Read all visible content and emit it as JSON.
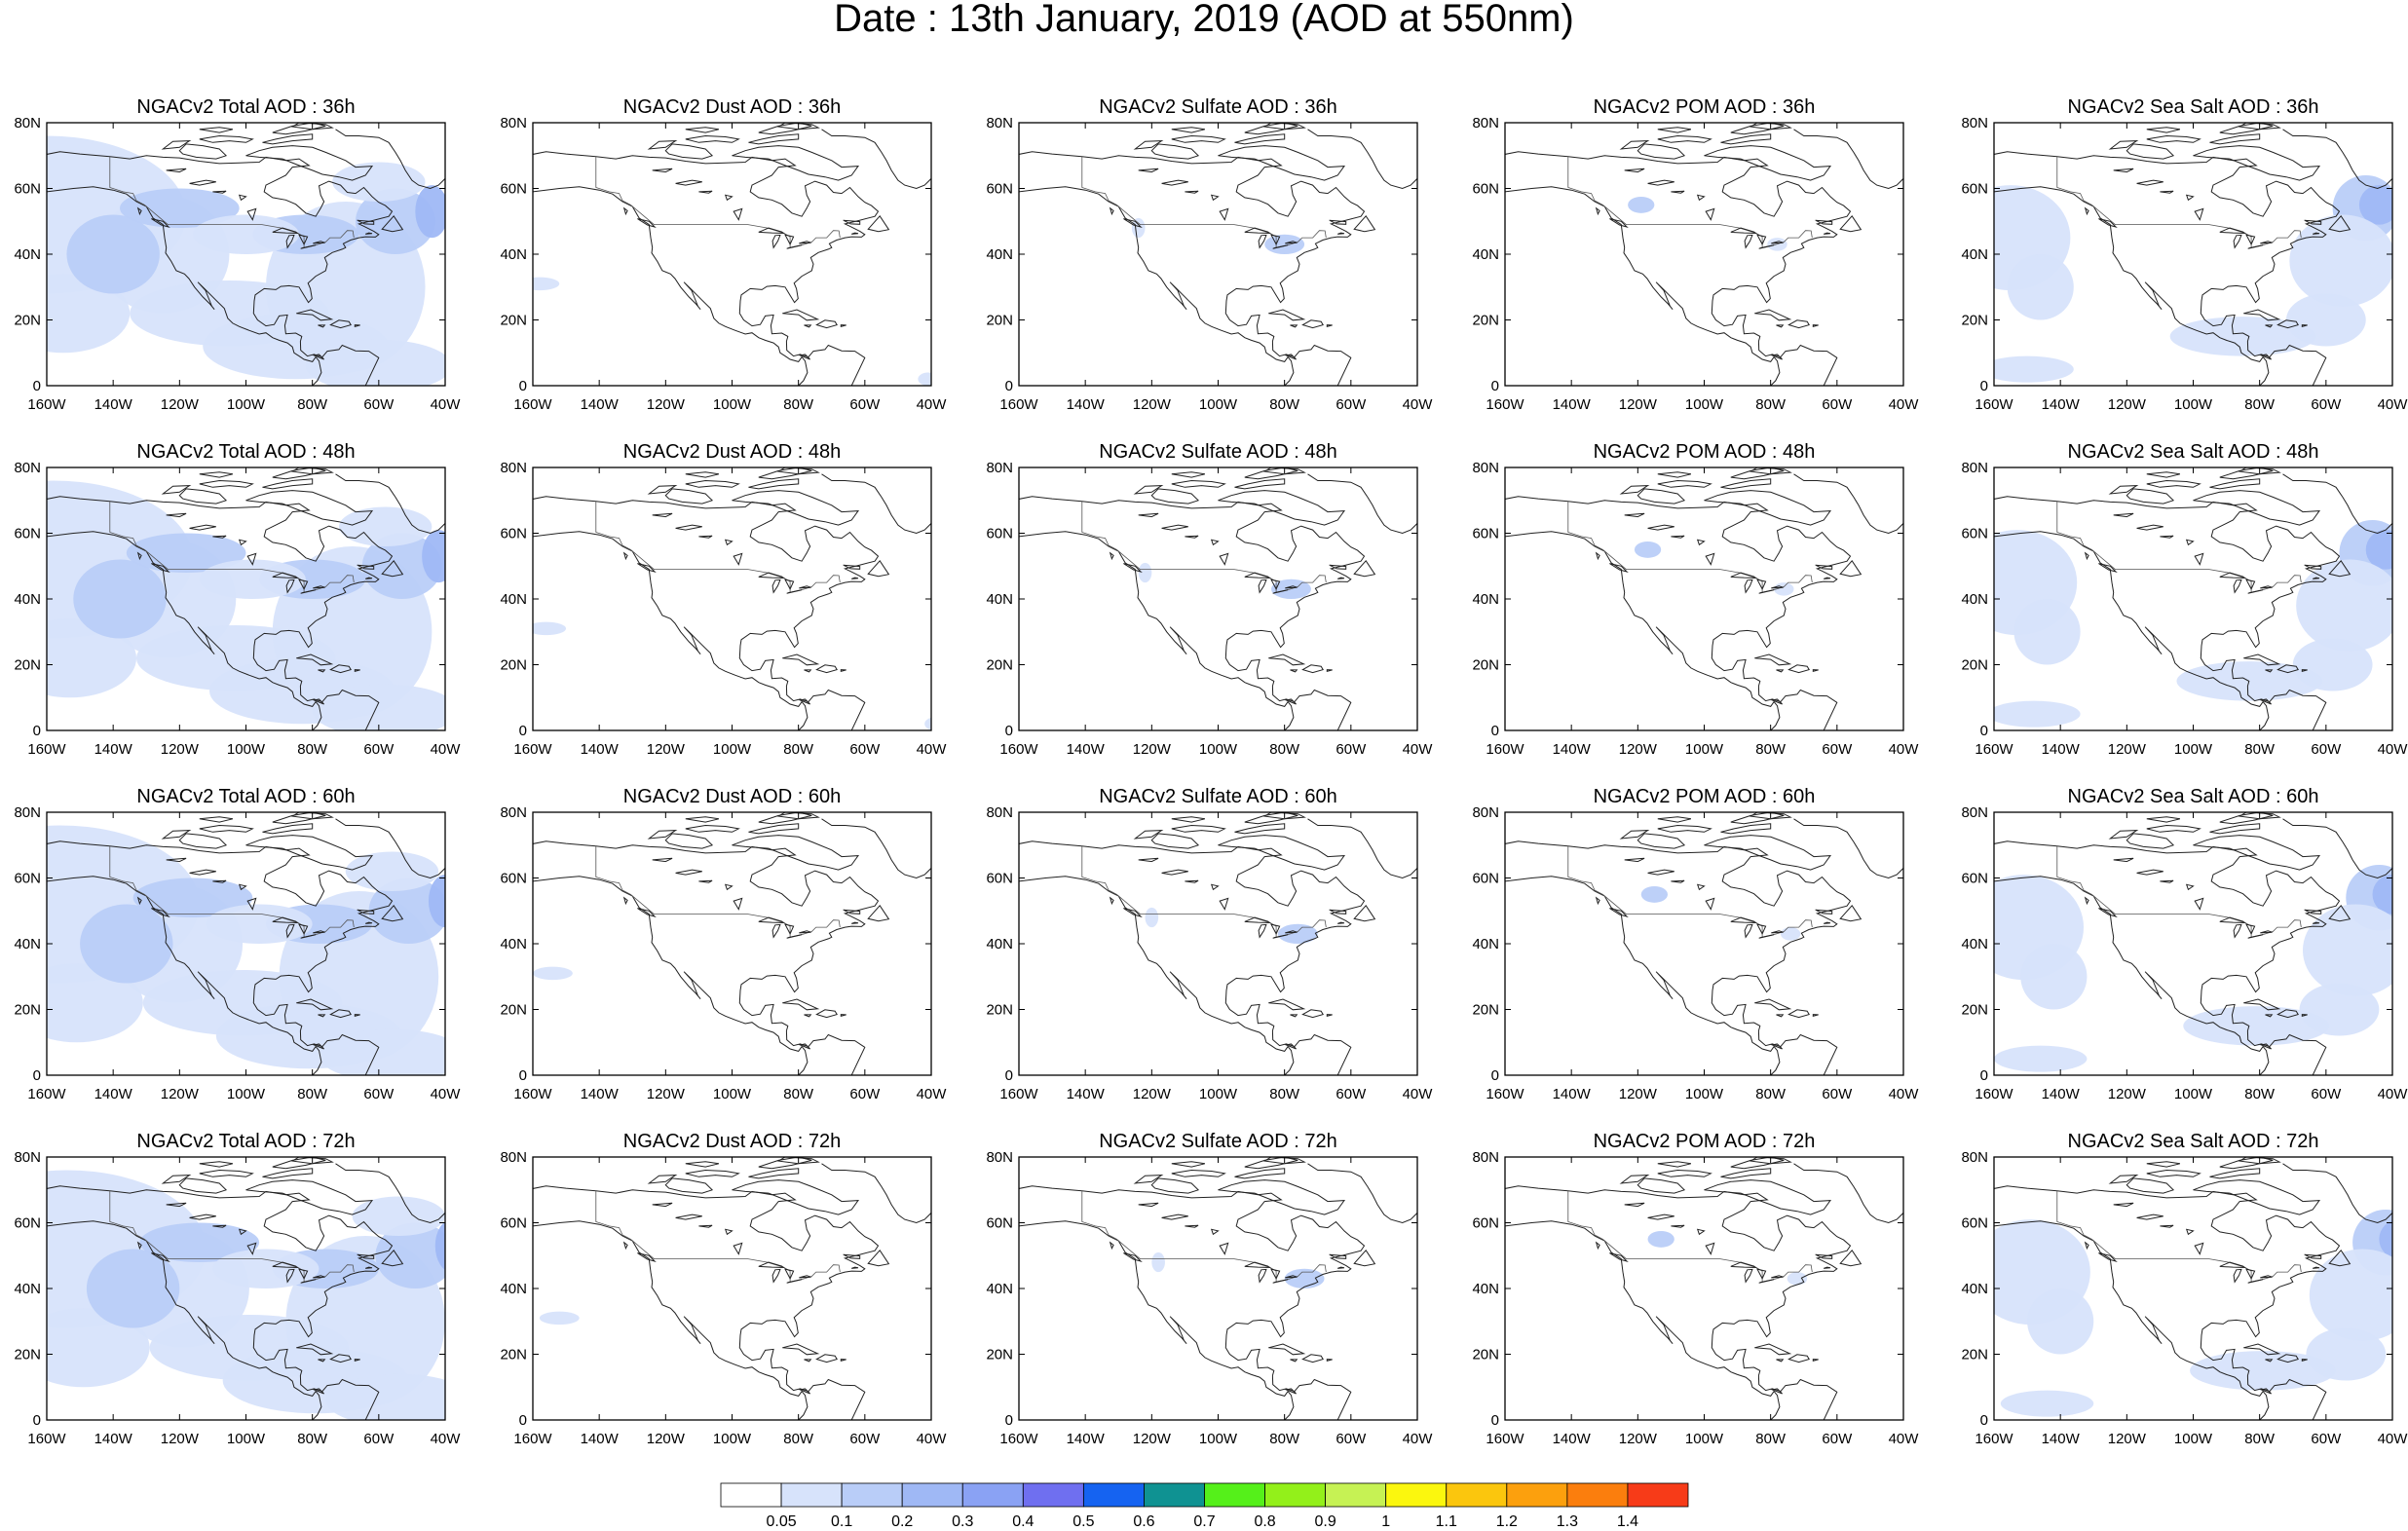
{
  "title": "Date : 13th January, 2019 (AOD at 550nm)",
  "lat_ticks": [
    "80N",
    "60N",
    "40N",
    "20N",
    "0"
  ],
  "lon_ticks": [
    "160W",
    "140W",
    "120W",
    "100W",
    "80W",
    "60W",
    "40W"
  ],
  "panel_titles": [
    [
      "NGACv2 Total AOD : 36h",
      "NGACv2 Dust AOD : 36h",
      "NGACv2 Sulfate AOD : 36h",
      "NGACv2 POM AOD : 36h",
      "NGACv2 Sea Salt AOD : 36h"
    ],
    [
      "NGACv2 Total AOD : 48h",
      "NGACv2 Dust AOD : 48h",
      "NGACv2 Sulfate AOD : 48h",
      "NGACv2 POM AOD : 48h",
      "NGACv2 Sea Salt AOD : 48h"
    ],
    [
      "NGACv2 Total AOD : 60h",
      "NGACv2 Dust AOD : 60h",
      "NGACv2 Sulfate AOD : 60h",
      "NGACv2 POM AOD : 60h",
      "NGACv2 Sea Salt AOD : 60h"
    ],
    [
      "NGACv2 Total AOD : 72h",
      "NGACv2 Dust AOD : 72h",
      "NGACv2 Sulfate AOD : 72h",
      "NGACv2 POM AOD : 72h",
      "NGACv2 Sea Salt  AOD : 72h"
    ]
  ],
  "colorbar": {
    "labels": [
      "0.05",
      "0.1",
      "0.2",
      "0.3",
      "0.4",
      "0.5",
      "0.6",
      "0.7",
      "0.8",
      "0.9",
      "1",
      "1.1",
      "1.2",
      "1.3",
      "1.4"
    ],
    "colors": [
      "#ffffff",
      "#d7e3fb",
      "#b9cdf8",
      "#9fb8f5",
      "#8aa2f4",
      "#6f6ff0",
      "#1563f1",
      "#0f9292",
      "#55f01a",
      "#93f01a",
      "#c6f254",
      "#fbf70e",
      "#fbc60d",
      "#fca00d",
      "#fb7e0d",
      "#f73b18"
    ]
  },
  "map_colors": {
    "light": "#d7e3fb",
    "medium": "#b9cdf8",
    "strong": "#9fb8f5",
    "peak": "#8aa2f4",
    "green": "#0f9292",
    "outline": "#222222"
  }
}
